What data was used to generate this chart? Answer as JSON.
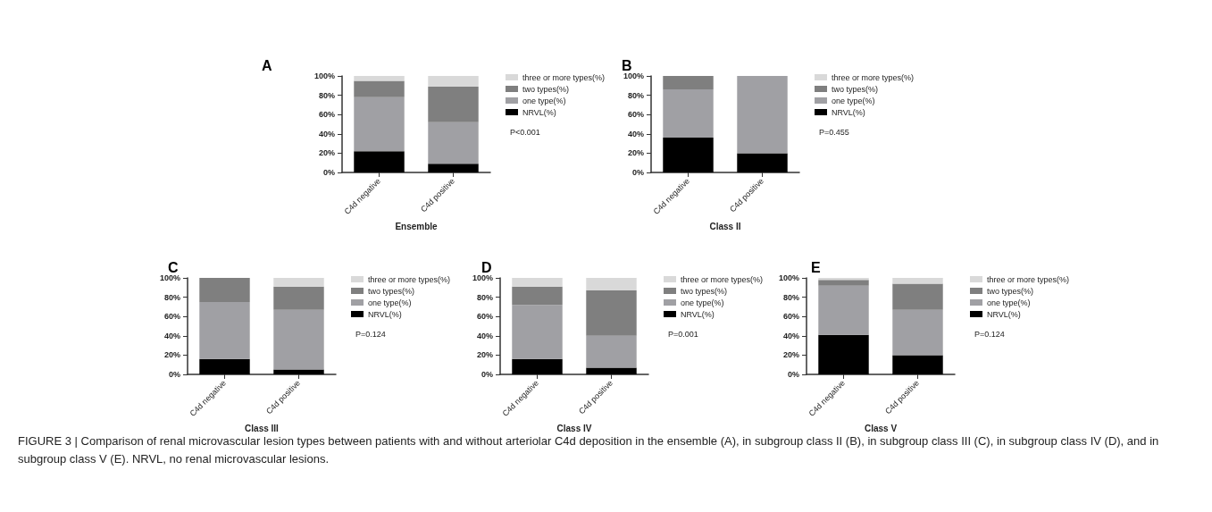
{
  "chart_data": [
    {
      "type": "bar",
      "title": "A",
      "xlabel": "Ensemble",
      "categories": [
        "C4d negative",
        "C4d positive"
      ],
      "stacked": true,
      "legend": "right",
      "grid": false,
      "ylim": [
        0,
        100
      ],
      "yticks": [
        {
          "value": 0,
          "label": "0%"
        },
        {
          "value": 20,
          "label": "20%"
        },
        {
          "value": 40,
          "label": "40%"
        },
        {
          "value": 60,
          "label": "60%"
        },
        {
          "value": 80,
          "label": "80%"
        },
        {
          "value": 100,
          "label": "100%"
        }
      ],
      "series": [
        {
          "name": "NRVL(%)",
          "color": "#000000",
          "values": [
            22,
            9
          ]
        },
        {
          "name": "one type(%)",
          "color": "#a0a0a4",
          "values": [
            56,
            43
          ]
        },
        {
          "name": "two types(%)",
          "color": "#7f7f7f",
          "values": [
            17,
            37
          ]
        },
        {
          "name": "three or more types(%)",
          "color": "#d9d9d9",
          "values": [
            5,
            11
          ]
        }
      ],
      "annotations": [
        "P<0.001"
      ]
    },
    {
      "type": "bar",
      "title": "B",
      "xlabel": "Class II",
      "categories": [
        "C4d negative",
        "C4d positive"
      ],
      "stacked": true,
      "legend": "right",
      "grid": false,
      "ylim": [
        0,
        100
      ],
      "yticks": [
        {
          "value": 0,
          "label": "0%"
        },
        {
          "value": 20,
          "label": "20%"
        },
        {
          "value": 40,
          "label": "40%"
        },
        {
          "value": 60,
          "label": "60%"
        },
        {
          "value": 80,
          "label": "80%"
        },
        {
          "value": 100,
          "label": "100%"
        }
      ],
      "series": [
        {
          "name": "NRVL(%)",
          "color": "#000000",
          "values": [
            36,
            20
          ]
        },
        {
          "name": "one type(%)",
          "color": "#a0a0a4",
          "values": [
            50,
            80
          ]
        },
        {
          "name": "two types(%)",
          "color": "#7f7f7f",
          "values": [
            14,
            0
          ]
        },
        {
          "name": "three or more types(%)",
          "color": "#d9d9d9",
          "values": [
            0,
            0
          ]
        }
      ],
      "annotations": [
        "P=0.455"
      ]
    },
    {
      "type": "bar",
      "title": "C",
      "xlabel": "Class III",
      "categories": [
        "C4d negative",
        "C4d positive"
      ],
      "stacked": true,
      "legend": "right",
      "grid": false,
      "ylim": [
        0,
        100
      ],
      "yticks": [
        {
          "value": 0,
          "label": "0%"
        },
        {
          "value": 20,
          "label": "20%"
        },
        {
          "value": 40,
          "label": "40%"
        },
        {
          "value": 60,
          "label": "60%"
        },
        {
          "value": 80,
          "label": "80%"
        },
        {
          "value": 100,
          "label": "100%"
        }
      ],
      "series": [
        {
          "name": "NRVL(%)",
          "color": "#000000",
          "values": [
            16,
            5
          ]
        },
        {
          "name": "one type(%)",
          "color": "#a0a0a4",
          "values": [
            59,
            62
          ]
        },
        {
          "name": "two types(%)",
          "color": "#7f7f7f",
          "values": [
            25,
            24
          ]
        },
        {
          "name": "three or more types(%)",
          "color": "#d9d9d9",
          "values": [
            0,
            9
          ]
        }
      ],
      "annotations": [
        "P=0.124"
      ]
    },
    {
      "type": "bar",
      "title": "D",
      "xlabel": "Class IV",
      "categories": [
        "C4d negative",
        "C4d positive"
      ],
      "stacked": true,
      "legend": "right",
      "grid": false,
      "ylim": [
        0,
        100
      ],
      "yticks": [
        {
          "value": 0,
          "label": "0%"
        },
        {
          "value": 20,
          "label": "20%"
        },
        {
          "value": 40,
          "label": "40%"
        },
        {
          "value": 60,
          "label": "60%"
        },
        {
          "value": 80,
          "label": "80%"
        },
        {
          "value": 100,
          "label": "100%"
        }
      ],
      "series": [
        {
          "name": "NRVL(%)",
          "color": "#000000",
          "values": [
            16,
            7
          ]
        },
        {
          "name": "one type(%)",
          "color": "#a0a0a4",
          "values": [
            56,
            33
          ]
        },
        {
          "name": "two types(%)",
          "color": "#7f7f7f",
          "values": [
            19,
            47
          ]
        },
        {
          "name": "three or more types(%)",
          "color": "#d9d9d9",
          "values": [
            9,
            13
          ]
        }
      ],
      "annotations": [
        "P=0.001"
      ]
    },
    {
      "type": "bar",
      "title": "E",
      "xlabel": "Class V",
      "categories": [
        "C4d negative",
        "C4d positive"
      ],
      "stacked": true,
      "legend": "right",
      "grid": false,
      "ylim": [
        0,
        100
      ],
      "yticks": [
        {
          "value": 0,
          "label": "0%"
        },
        {
          "value": 20,
          "label": "20%"
        },
        {
          "value": 40,
          "label": "40%"
        },
        {
          "value": 60,
          "label": "60%"
        },
        {
          "value": 80,
          "label": "80%"
        },
        {
          "value": 100,
          "label": "100%"
        }
      ],
      "series": [
        {
          "name": "NRVL(%)",
          "color": "#000000",
          "values": [
            41,
            20
          ]
        },
        {
          "name": "one type(%)",
          "color": "#a0a0a4",
          "values": [
            51,
            47
          ]
        },
        {
          "name": "two types(%)",
          "color": "#7f7f7f",
          "values": [
            6,
            27
          ]
        },
        {
          "name": "three or more types(%)",
          "color": "#d9d9d9",
          "values": [
            2,
            6
          ]
        }
      ],
      "annotations": [
        "P=0.124",
        "FIGURE 3 | Comparison of renal microvascular lesion types between patients with and without arteriolar C4d deposition in the ensemble (A), in subgroup class II (B), in subgroup class III (C), in subgroup class IV (D), and in subgroup class V (E). NRVL, no renal microvascular lesions."
      ]
    }
  ]
}
